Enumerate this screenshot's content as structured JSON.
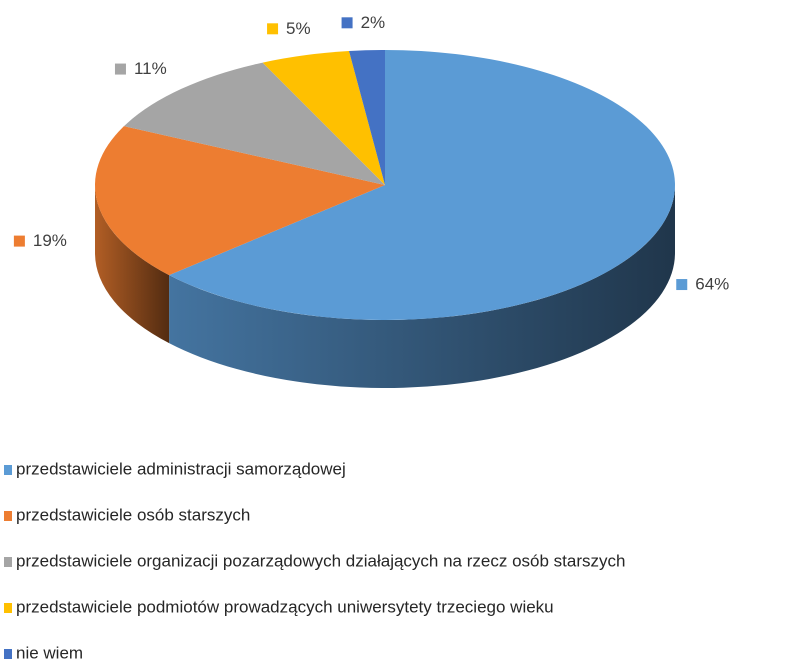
{
  "chart_data": {
    "type": "pie",
    "categories": [
      "przedstawiciele administracji samorządowej",
      "przedstawiciele osób starszych",
      "przedstawiciele organizacji pozarządowych działających na rzecz osób starszych",
      "przedstawiciele podmiotów prowadzących uniwersytety trzeciego wieku",
      "nie wiem"
    ],
    "values": [
      64,
      19,
      11,
      5,
      2
    ],
    "value_labels": [
      "64%",
      "19%",
      "11%",
      "5%",
      "2%"
    ],
    "colors": [
      "#5b9bd5",
      "#ed7d31",
      "#a5a5a5",
      "#ffc000",
      "#4472c4"
    ],
    "legend": "bottom"
  }
}
